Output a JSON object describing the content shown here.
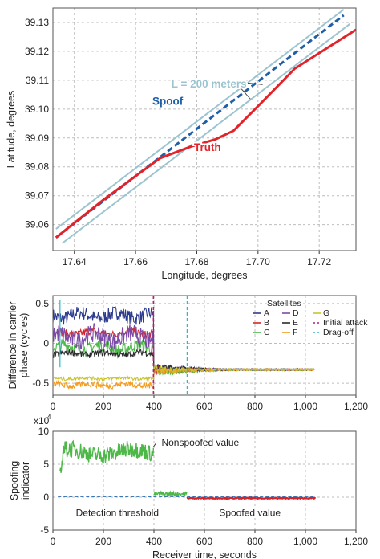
{
  "chart_data": [
    {
      "type": "line",
      "xlabel": "Longitude, degrees",
      "ylabel": "Latitude, degrees",
      "xlim": [
        17.633,
        17.732
      ],
      "ylim": [
        39.051,
        39.135
      ],
      "xticks": [
        17.64,
        17.66,
        17.68,
        17.7,
        17.72
      ],
      "xtick_labels": [
        "17.64",
        "17.66",
        "17.68",
        "17.70",
        "17.72"
      ],
      "yticks": [
        39.06,
        39.07,
        39.08,
        39.09,
        39.1,
        39.11,
        39.12,
        39.13
      ],
      "ytick_labels": [
        "39.06",
        "39.07",
        "39.08",
        "39.09",
        "39.10",
        "39.11",
        "39.12",
        "39.13"
      ],
      "grid": true,
      "series": [
        {
          "key": "band_upper",
          "color": "#9cc4d0",
          "x": [
            17.634,
            17.728
          ],
          "y": [
            39.0585,
            39.1345
          ]
        },
        {
          "key": "band_lower",
          "color": "#9cc4d0",
          "x": [
            17.636,
            17.73
          ],
          "y": [
            39.0535,
            39.1295
          ]
        },
        {
          "name": "Spoof",
          "color": "#1f5fa8",
          "x": [
            17.634,
            17.728
          ],
          "y": [
            39.0555,
            39.1325
          ]
        },
        {
          "name": "Truth",
          "color": "#e2232a",
          "x": [
            17.634,
            17.65,
            17.668,
            17.678,
            17.686,
            17.692,
            17.7,
            17.712,
            17.732
          ],
          "y": [
            39.0555,
            39.069,
            39.083,
            39.087,
            39.0895,
            39.0925,
            39.101,
            39.114,
            39.1275
          ]
        }
      ],
      "annotations": [
        {
          "text": "L = 200 meters",
          "color": "#9cc4d0",
          "x": 17.684,
          "y": 39.1075
        },
        {
          "text": "Spoof",
          "color": "#1f5fa8",
          "x": 17.6705,
          "y": 39.1015
        },
        {
          "text": "Truth",
          "color": "#e2232a",
          "x": 17.6835,
          "y": 39.0855
        }
      ],
      "leaders": [
        {
          "from": [
            17.6925,
            39.1095
          ],
          "to": [
            17.7015,
            39.1085
          ]
        },
        {
          "from": [
            17.6925,
            39.1095
          ],
          "to": [
            17.6975,
            39.1035
          ]
        }
      ]
    },
    {
      "type": "line",
      "xlabel": "",
      "ylabel": "Difference in carrier phase (cycles)",
      "xlim": [
        0,
        1200
      ],
      "ylim": [
        -0.65,
        0.6
      ],
      "xticks": [
        0,
        200,
        400,
        600,
        800,
        1000,
        1200
      ],
      "xtick_labels": [
        "0",
        "200",
        "400",
        "600",
        "800",
        "1,000",
        "1,200"
      ],
      "yticks": [
        -0.5,
        0,
        0.5
      ],
      "ytick_labels": [
        "-0.5",
        "0",
        "0.5"
      ],
      "grid": true,
      "legend_title": "Satellites",
      "legend_position": "top-right",
      "series": [
        {
          "name": "A",
          "color": "#2d3b8f",
          "style": "solid",
          "before_level": 0.35,
          "noise": 0.09,
          "after_level": -0.32
        },
        {
          "name": "B",
          "color": "#d62228",
          "style": "solid",
          "before_level": 0.13,
          "noise": 0.05,
          "after_level": -0.34
        },
        {
          "name": "C",
          "color": "#4db848",
          "style": "solid",
          "before_level": -0.05,
          "noise": 0.08,
          "after_level": -0.36
        },
        {
          "name": "D",
          "color": "#7b4aa8",
          "style": "solid",
          "before_level": 0.08,
          "noise": 0.12,
          "after_level": -0.33
        },
        {
          "name": "E",
          "color": "#2a2a2a",
          "style": "solid",
          "before_level": -0.13,
          "noise": 0.04,
          "after_level": -0.31
        },
        {
          "name": "F",
          "color": "#f39a1c",
          "style": "solid",
          "before_level": -0.52,
          "noise": 0.04,
          "after_level": -0.35
        },
        {
          "name": "G",
          "color": "#c9c42a",
          "style": "solid",
          "before_level": -0.44,
          "noise": 0.02,
          "after_level": -0.33
        },
        {
          "name": "Initial attack",
          "color": "#b0246c",
          "style": "dashed",
          "x": 398
        },
        {
          "name": "Drag-off",
          "color": "#2bb8c9",
          "style": "dashed",
          "x": 532
        }
      ]
    },
    {
      "type": "line",
      "xlabel": "Receiver time, seconds",
      "ylabel": "Spoofing indicator",
      "xlim": [
        0,
        1200
      ],
      "ylim": [
        -5,
        10
      ],
      "multiplier": "x10",
      "multiplier_exp": "4",
      "xticks": [
        0,
        200,
        400,
        600,
        800,
        1000,
        1200
      ],
      "xtick_labels": [
        "0",
        "200",
        "400",
        "600",
        "800",
        "1,000",
        "1,200"
      ],
      "yticks": [
        -5,
        0,
        5,
        10
      ],
      "ytick_labels": [
        "-5",
        "0",
        "5",
        "10"
      ],
      "grid": true,
      "series": [
        {
          "key": "nonspoofed",
          "color": "#4db848",
          "x_range": [
            28,
            398
          ],
          "level": 6.8
        },
        {
          "key": "after_attack",
          "color": "#4db848",
          "x_range": [
            400,
            530
          ],
          "level": 0.5
        },
        {
          "key": "spoofed",
          "color": "#d62228",
          "x_range": [
            530,
            1040
          ],
          "level": -0.15
        },
        {
          "key": "threshold",
          "color": "#2a6cb0",
          "style": "dashed",
          "x_range": [
            20,
            1040
          ],
          "level": 0.1
        }
      ],
      "annotations": [
        {
          "text": "Nonspoofed value",
          "x": 430,
          "y": 8.3
        },
        {
          "text": "Detection threshold",
          "x": 255,
          "y": -2.4
        },
        {
          "text": "Spoofed value",
          "x": 780,
          "y": -2.4
        }
      ]
    }
  ]
}
